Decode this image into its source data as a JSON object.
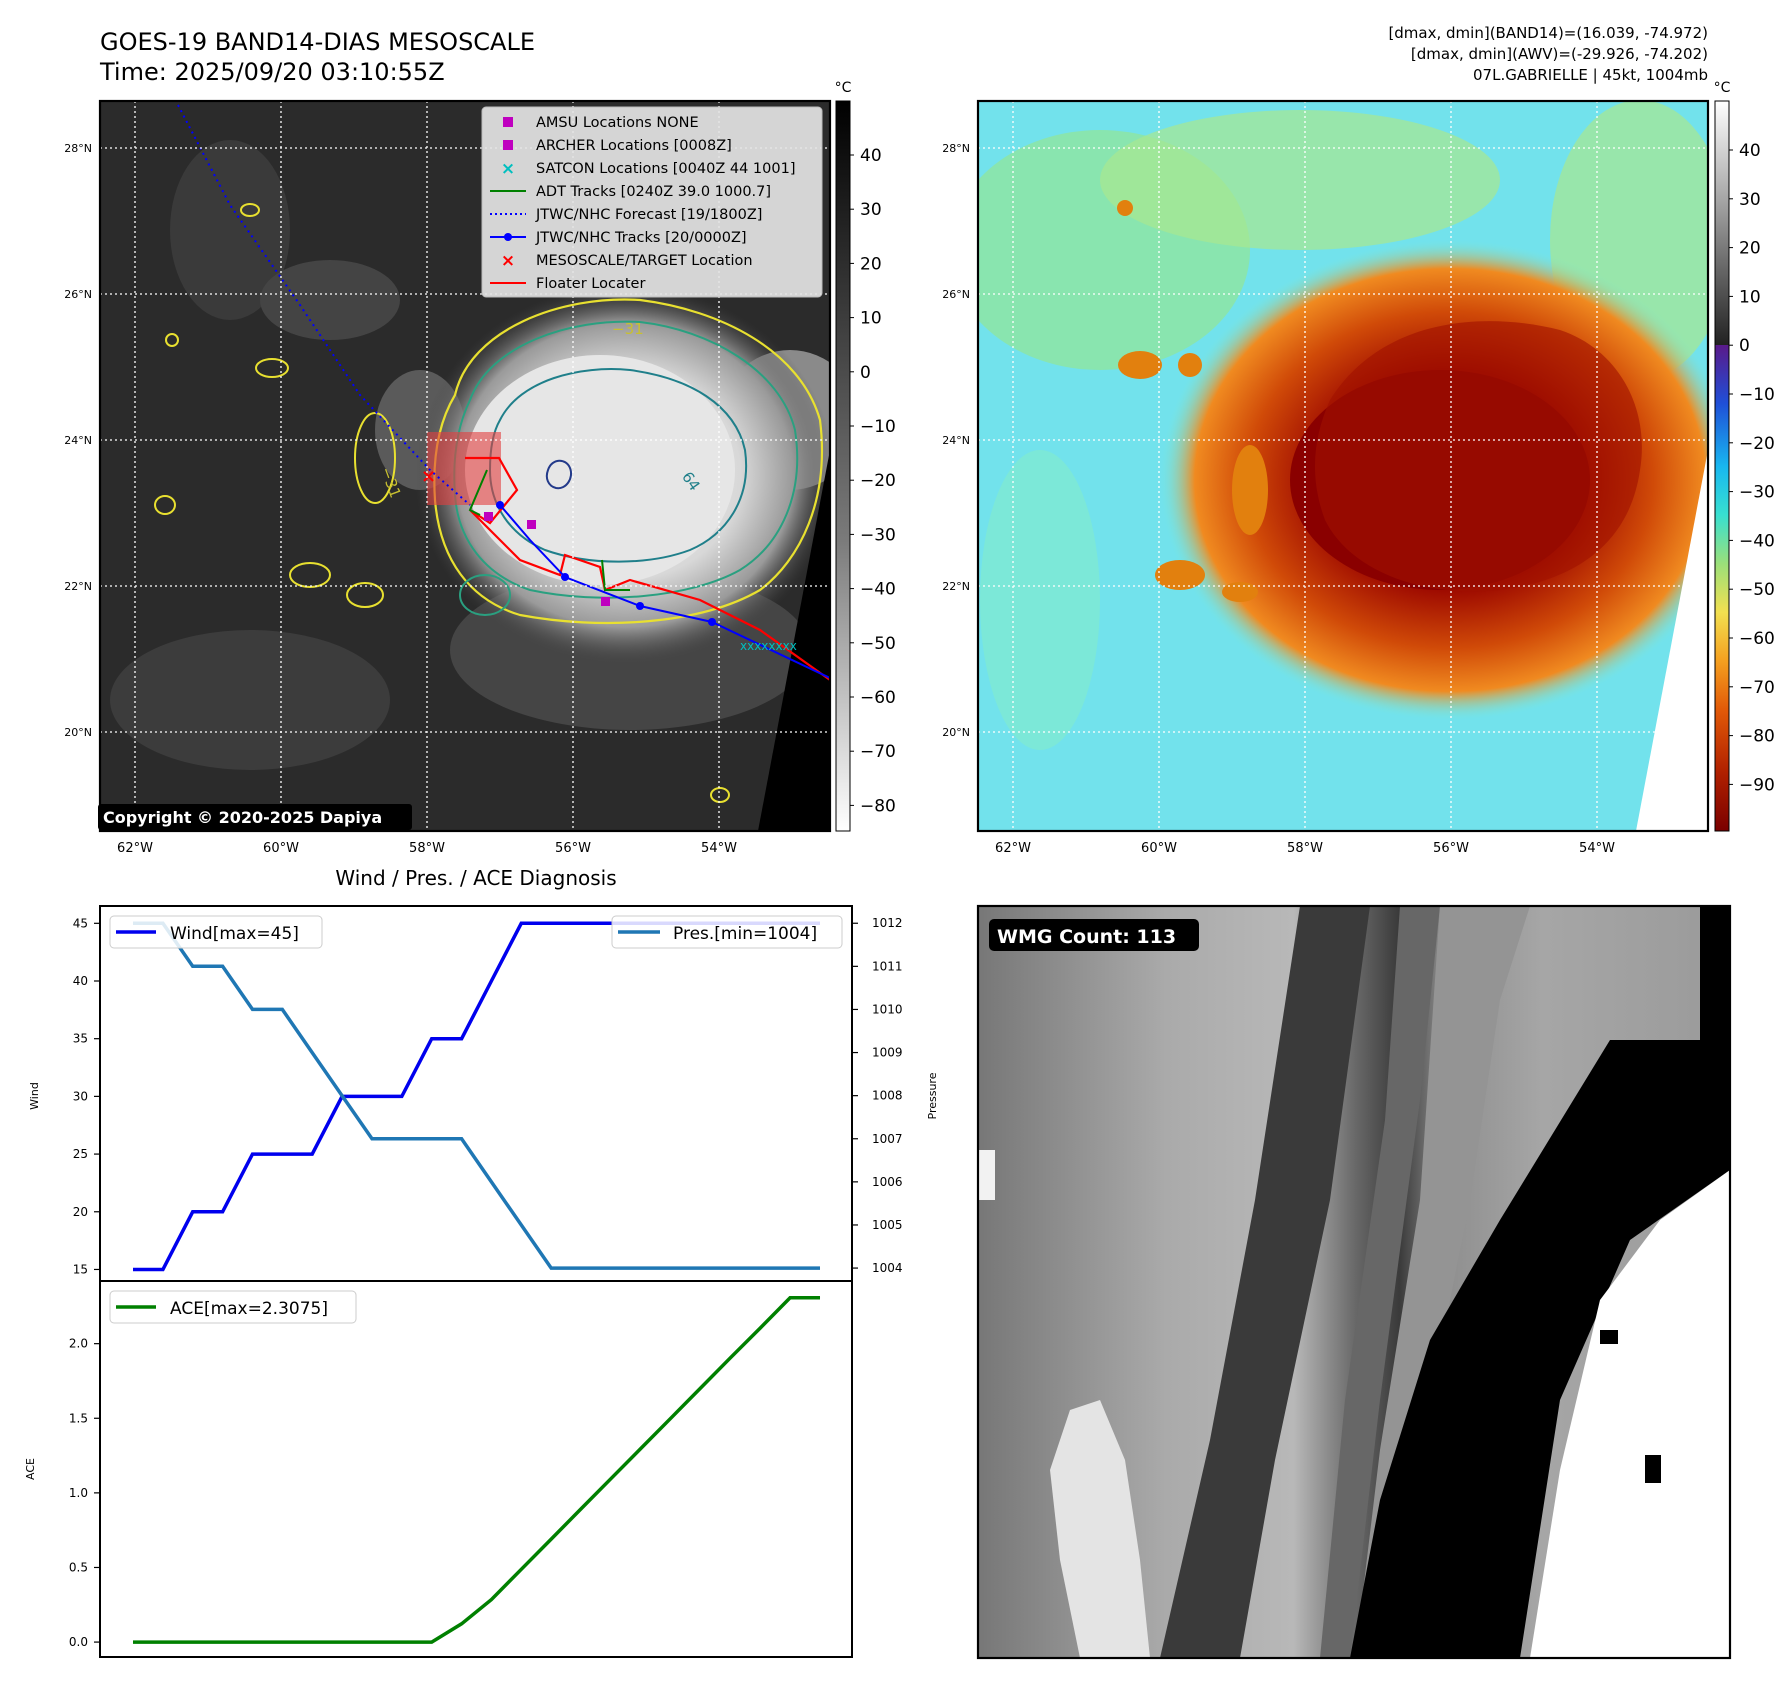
{
  "header": {
    "title_line1": "GOES-19 BAND14-DIAS MESOSCALE",
    "title_line2": "Time: 2025/09/20 03:10:55Z",
    "info_line1": "[dmax, dmin](BAND14)=(16.039, -74.972)",
    "info_line2": "[dmax, dmin](AWV)=(-29.926, -74.202)",
    "info_line3": "07L.GABRIELLE | 45kt, 1004mb"
  },
  "copyright": "Copyright © 2020-2025 Dapiya",
  "ir_map": {
    "lat_labels": [
      "28°N",
      "26°N",
      "24°N",
      "22°N",
      "20°N"
    ],
    "lon_labels": [
      "62°W",
      "60°W",
      "58°W",
      "56°W",
      "54°W"
    ],
    "colorbar_unit": "°C",
    "colorbar_ticks": [
      "40",
      "30",
      "20",
      "10",
      "0",
      "−10",
      "−20",
      "−30",
      "−40",
      "−50",
      "−60",
      "−70",
      "−80"
    ],
    "contour_labels": [
      "−31",
      "−31",
      "64"
    ],
    "legend": [
      {
        "label": "AMSU Locations NONE",
        "color": "#bf00bf",
        "marker": "square"
      },
      {
        "label": "ARCHER Locations [0008Z]",
        "color": "#bf00bf",
        "marker": "square"
      },
      {
        "label": "SATCON Locations [0040Z 44 1001]",
        "color": "#00bfbf",
        "marker": "x"
      },
      {
        "label": "ADT Tracks [0240Z 39.0 1000.7]",
        "color": "#008000",
        "marker": "line"
      },
      {
        "label": "JTWC/NHC Forecast [19/1800Z]",
        "color": "#0000ff",
        "marker": "dotted"
      },
      {
        "label": "JTWC/NHC Tracks [20/0000Z]",
        "color": "#0000ff",
        "marker": "line-dot"
      },
      {
        "label": "MESOSCALE/TARGET Location",
        "color": "#ff0000",
        "marker": "x"
      },
      {
        "label": "Floater Locater",
        "color": "#ff0000",
        "marker": "line"
      }
    ]
  },
  "awv_map": {
    "lat_labels": [
      "28°N",
      "26°N",
      "24°N",
      "22°N",
      "20°N"
    ],
    "lon_labels": [
      "62°W",
      "60°W",
      "58°W",
      "56°W",
      "54°W"
    ],
    "colorbar_unit": "°C",
    "colorbar_ticks": [
      "40",
      "30",
      "20",
      "10",
      "0",
      "−10",
      "−20",
      "−30",
      "−40",
      "−50",
      "−60",
      "−70",
      "−80",
      "−90"
    ]
  },
  "diagnosis": {
    "title": "Wind / Pres. / ACE Diagnosis",
    "wind_ylabel": "Wind",
    "pres_ylabel": "Pressure",
    "ace_ylabel": "ACE",
    "wind_legend": "Wind[max=45]",
    "pres_legend": "Pres.[min=1004]",
    "ace_legend": "ACE[max=2.3075]"
  },
  "wmg": {
    "label": "WMG Count: 113"
  },
  "chart_data": [
    {
      "type": "line",
      "title": "Wind / Pres. / ACE Diagnosis",
      "ylabel": "Wind",
      "ylim": [
        14,
        46.5
      ],
      "yticks": [
        15,
        20,
        25,
        30,
        35,
        40,
        45
      ],
      "x": [
        0,
        1,
        2,
        3,
        4,
        5,
        6,
        7,
        8,
        9,
        10,
        11,
        12,
        13,
        14,
        15,
        16,
        17,
        18,
        19,
        20,
        21,
        22,
        23
      ],
      "series": [
        {
          "name": "Wind[max=45]",
          "color": "#0000ee",
          "values": [
            15,
            15,
            20,
            20,
            25,
            25,
            25,
            30,
            30,
            30,
            35,
            35,
            40,
            45,
            45,
            45,
            45,
            45,
            45,
            45,
            45,
            45,
            45,
            45
          ]
        }
      ]
    },
    {
      "type": "line",
      "ylabel": "Pressure",
      "ylim": [
        1003.7,
        1012.4
      ],
      "yticks": [
        1004,
        1005,
        1006,
        1007,
        1008,
        1009,
        1010,
        1011,
        1012
      ],
      "x": [
        0,
        1,
        2,
        3,
        4,
        5,
        6,
        7,
        8,
        9,
        10,
        11,
        12,
        13,
        14,
        15,
        16,
        17,
        18,
        19,
        20,
        21,
        22,
        23
      ],
      "series": [
        {
          "name": "Pres.[min=1004]",
          "color": "#1f77b4",
          "values": [
            1012,
            1012,
            1011,
            1011,
            1010,
            1010,
            1009,
            1008,
            1007,
            1007,
            1007,
            1007,
            1006,
            1005,
            1004,
            1004,
            1004,
            1004,
            1004,
            1004,
            1004,
            1004,
            1004,
            1004
          ]
        }
      ]
    },
    {
      "type": "line",
      "ylabel": "ACE",
      "ylim": [
        -0.1,
        2.42
      ],
      "yticks": [
        0.0,
        0.5,
        1.0,
        1.5,
        2.0
      ],
      "ytick_labels": [
        "0.0",
        "0.5",
        "1.0",
        "1.5",
        "2.0"
      ],
      "x": [
        0,
        1,
        2,
        3,
        4,
        5,
        6,
        7,
        8,
        9,
        10,
        11,
        12,
        13,
        14,
        15,
        16,
        17,
        18,
        19,
        20,
        21,
        22,
        23
      ],
      "series": [
        {
          "name": "ACE[max=2.3075]",
          "color": "#008000",
          "values": [
            0,
            0,
            0,
            0,
            0,
            0,
            0,
            0,
            0,
            0,
            0,
            0.1225,
            0.285,
            0.4875,
            0.69,
            0.8925,
            1.095,
            1.2975,
            1.5,
            1.7025,
            1.905,
            2.105,
            2.3075,
            2.3075
          ]
        }
      ]
    }
  ]
}
